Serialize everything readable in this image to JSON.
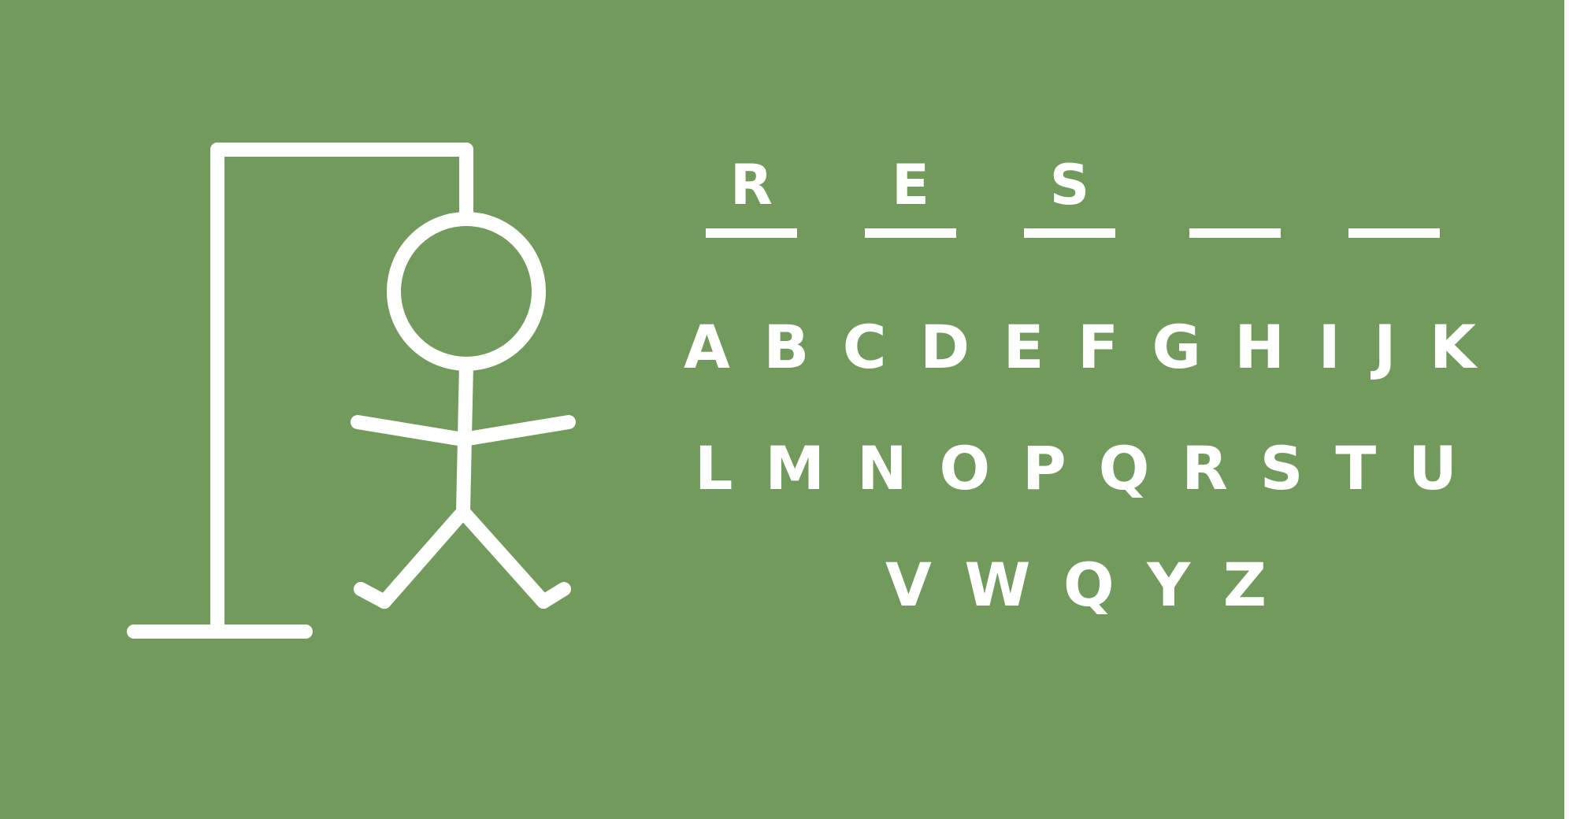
{
  "colors": {
    "board": "#739a5d",
    "chalk": "#ffffff"
  },
  "word": {
    "slots": [
      {
        "letter": "R"
      },
      {
        "letter": "E"
      },
      {
        "letter": "S"
      },
      {
        "letter": ""
      },
      {
        "letter": ""
      }
    ]
  },
  "keyboard": {
    "rows": [
      [
        "A",
        "B",
        "C",
        "D",
        "E",
        "F",
        "G",
        "H",
        "I",
        "J",
        "K"
      ],
      [
        "L",
        "M",
        "N",
        "O",
        "P",
        "Q",
        "R",
        "S",
        "T",
        "U"
      ],
      [
        "V",
        "W",
        "Q",
        "Y",
        "Z"
      ]
    ]
  },
  "hangman": {
    "parts_shown": [
      "gallows",
      "rope",
      "head",
      "body",
      "left-arm",
      "right-arm",
      "left-leg",
      "right-leg"
    ]
  }
}
